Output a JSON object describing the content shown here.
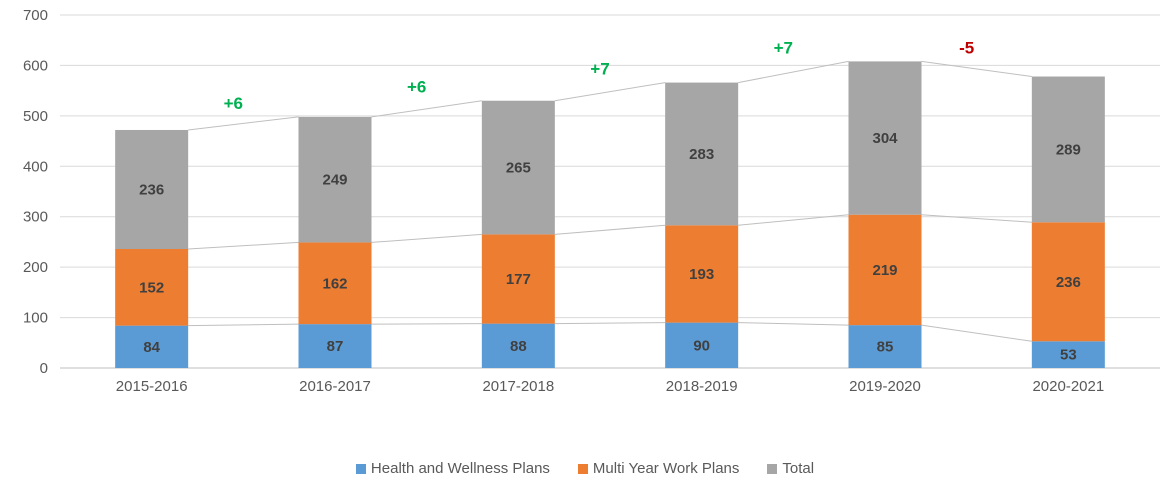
{
  "chart_data": {
    "type": "bar",
    "stacked": true,
    "title": "",
    "xlabel": "",
    "ylabel": "",
    "categories": [
      "2015-2016",
      "2016-2017",
      "2017-2018",
      "2018-2019",
      "2019-2020",
      "2020-2021"
    ],
    "series": [
      {
        "name": "Health and Wellness Plans",
        "color": "#5B9BD5",
        "values": [
          84,
          87,
          88,
          90,
          85,
          53
        ]
      },
      {
        "name": "Multi Year Work Plans",
        "color": "#ED7D31",
        "values": [
          152,
          162,
          177,
          193,
          219,
          236
        ]
      },
      {
        "name": "Total",
        "color": "#A6A6A6",
        "values": [
          236,
          249,
          265,
          283,
          304,
          289
        ]
      }
    ],
    "annotations": [
      {
        "between": [
          "2015-2016",
          "2016-2017"
        ],
        "label": "+6",
        "color": "#00B050"
      },
      {
        "between": [
          "2016-2017",
          "2017-2018"
        ],
        "label": "+6",
        "color": "#00B050"
      },
      {
        "between": [
          "2017-2018",
          "2018-2019"
        ],
        "label": "+7",
        "color": "#00B050"
      },
      {
        "between": [
          "2018-2019",
          "2019-2020"
        ],
        "label": "+7",
        "color": "#00B050"
      },
      {
        "between": [
          "2019-2020",
          "2020-2021"
        ],
        "label": "-5",
        "color": "#C00000"
      }
    ],
    "ylim": [
      0,
      700
    ],
    "ytick_step": 100,
    "grid": true,
    "gridline_color": "#D9D9D9",
    "axis_line_color": "#BFBFBF",
    "connector_line_color": "#BFBFBF",
    "legend_position": "bottom"
  }
}
